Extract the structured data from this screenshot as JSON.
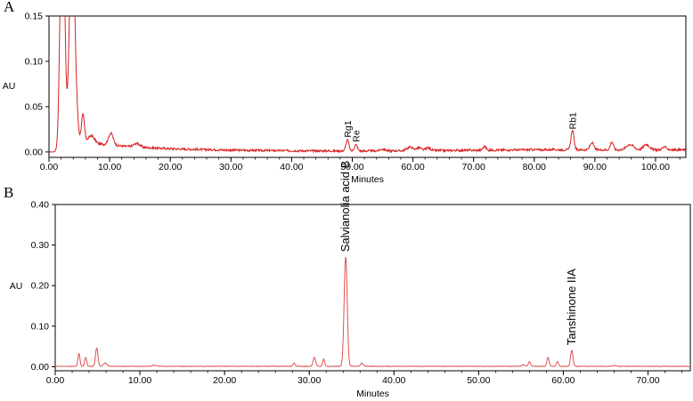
{
  "panels": [
    {
      "letter": "A"
    },
    {
      "letter": "B"
    }
  ],
  "chart_data": [
    {
      "type": "line",
      "xlabel": "Minutes",
      "ylabel": "AU",
      "xlim": [
        0,
        105
      ],
      "ylim": [
        -0.006,
        0.15
      ],
      "xticks": [
        "0.00",
        "10.00",
        "20.00",
        "30.00",
        "40.00",
        "50.00",
        "60.00",
        "70.00",
        "80.00",
        "90.00",
        "100.00"
      ],
      "yticks": [
        "0.00",
        "0.05",
        "0.10",
        "0.15"
      ],
      "color": "#d62020",
      "baseline": 0.0,
      "noise": 0.0012,
      "peaks": [
        {
          "x": 2.2,
          "y": 0.3,
          "w": 0.35
        },
        {
          "x": 3.8,
          "y": 0.25,
          "w": 0.4
        },
        {
          "x": 4.5,
          "y": 0.02,
          "w": 0.3
        },
        {
          "x": 5.6,
          "y": 0.03,
          "w": 0.25
        },
        {
          "x": 7.0,
          "y": 0.008,
          "w": 0.5
        },
        {
          "x": 10.2,
          "y": 0.013,
          "w": 0.4
        },
        {
          "x": 14.5,
          "y": 0.004,
          "w": 0.5
        },
        {
          "x": 49.2,
          "y": 0.012,
          "w": 0.25
        },
        {
          "x": 50.6,
          "y": 0.007,
          "w": 0.25
        },
        {
          "x": 55.0,
          "y": 0.002,
          "w": 0.4
        },
        {
          "x": 59.5,
          "y": 0.004,
          "w": 0.5
        },
        {
          "x": 61.0,
          "y": 0.003,
          "w": 0.4
        },
        {
          "x": 62.5,
          "y": 0.003,
          "w": 0.4
        },
        {
          "x": 71.8,
          "y": 0.004,
          "w": 0.25
        },
        {
          "x": 86.3,
          "y": 0.021,
          "w": 0.25
        },
        {
          "x": 89.5,
          "y": 0.008,
          "w": 0.3
        },
        {
          "x": 92.8,
          "y": 0.009,
          "w": 0.25
        },
        {
          "x": 95.8,
          "y": 0.006,
          "w": 0.6
        },
        {
          "x": 98.5,
          "y": 0.006,
          "w": 0.5
        },
        {
          "x": 101.5,
          "y": 0.003,
          "w": 0.4
        }
      ],
      "tail": {
        "start": 2.5,
        "amp": 0.012,
        "decay": 9,
        "floor_start": 50,
        "floor_amp": 0.002
      },
      "annotations": [
        {
          "text": "Rg1",
          "x": 49.2,
          "y": 0.012
        },
        {
          "text": "Re",
          "x": 50.6,
          "y": 0.007
        },
        {
          "text": "Rb1",
          "x": 86.3,
          "y": 0.021
        }
      ]
    },
    {
      "type": "line",
      "xlabel": "Minutes",
      "ylabel": "AU",
      "xlim": [
        0,
        75
      ],
      "ylim": [
        -0.01,
        0.4
      ],
      "xticks": [
        "0.00",
        "10.00",
        "20.00",
        "30.00",
        "40.00",
        "50.00",
        "60.00",
        "70.00"
      ],
      "yticks": [
        "0.00",
        "0.10",
        "0.20",
        "0.30",
        "0.40"
      ],
      "color": "#e05050",
      "baseline": 0.001,
      "noise": 0.0006,
      "peaks": [
        {
          "x": 2.8,
          "y": 0.032,
          "w": 0.12
        },
        {
          "x": 3.6,
          "y": 0.022,
          "w": 0.12
        },
        {
          "x": 4.9,
          "y": 0.045,
          "w": 0.14
        },
        {
          "x": 5.9,
          "y": 0.008,
          "w": 0.2
        },
        {
          "x": 11.7,
          "y": 0.003,
          "w": 0.2
        },
        {
          "x": 28.2,
          "y": 0.008,
          "w": 0.12
        },
        {
          "x": 30.6,
          "y": 0.022,
          "w": 0.15
        },
        {
          "x": 31.7,
          "y": 0.018,
          "w": 0.12
        },
        {
          "x": 34.3,
          "y": 0.27,
          "w": 0.18
        },
        {
          "x": 36.2,
          "y": 0.008,
          "w": 0.15
        },
        {
          "x": 55.3,
          "y": 0.004,
          "w": 0.15
        },
        {
          "x": 56.0,
          "y": 0.012,
          "w": 0.12
        },
        {
          "x": 58.2,
          "y": 0.022,
          "w": 0.13
        },
        {
          "x": 59.3,
          "y": 0.012,
          "w": 0.12
        },
        {
          "x": 61.0,
          "y": 0.04,
          "w": 0.14
        },
        {
          "x": 66.0,
          "y": 0.002,
          "w": 0.2
        }
      ],
      "annotations": [
        {
          "text": "Salvianolia acid B",
          "x": 34.3,
          "y": 0.27
        },
        {
          "text": "Tanshinone IIA",
          "x": 61.0,
          "y": 0.04
        }
      ]
    }
  ]
}
